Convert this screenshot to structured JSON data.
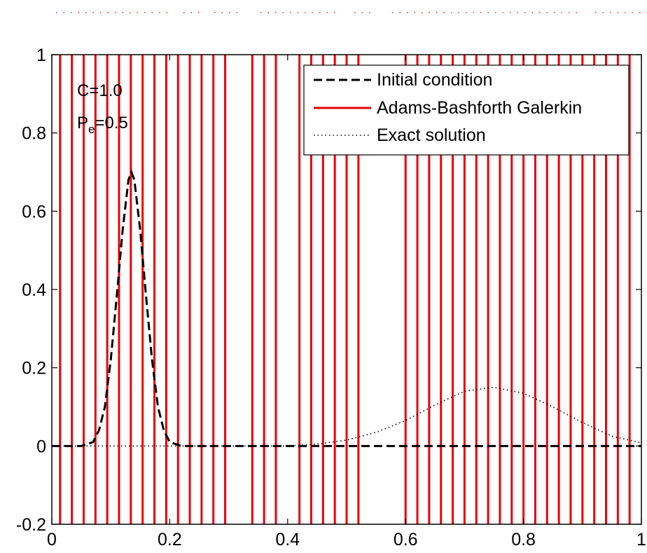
{
  "chart_data": {
    "type": "line",
    "title": "",
    "xlabel": "",
    "ylabel": "",
    "xlim": [
      0,
      1
    ],
    "ylim": [
      -0.2,
      1
    ],
    "x_ticks": [
      "0",
      "0.2",
      "0.4",
      "0.6",
      "0.8",
      "1"
    ],
    "y_ticks": [
      "-0.2",
      "0",
      "0.2",
      "0.4",
      "0.6",
      "0.8",
      "1"
    ],
    "grid": false,
    "legend_position": "top-right",
    "annotations": {
      "courant": "C=1.0",
      "peclet_main": "P",
      "peclet_sub": "e",
      "peclet_value": "=0.5"
    },
    "series": [
      {
        "name": "Initial condition",
        "style": "dashed",
        "color": "#000000",
        "x": [
          0,
          0.05,
          0.07,
          0.08,
          0.09,
          0.1,
          0.11,
          0.12,
          0.13,
          0.135,
          0.14,
          0.15,
          0.16,
          0.17,
          0.18,
          0.19,
          0.2,
          0.22,
          0.25,
          1.0
        ],
        "y": [
          0,
          0,
          0.01,
          0.04,
          0.1,
          0.22,
          0.38,
          0.55,
          0.68,
          0.7,
          0.68,
          0.55,
          0.38,
          0.22,
          0.1,
          0.04,
          0.01,
          0,
          0,
          0
        ]
      },
      {
        "name": "Adams-Bashforth Galerkin",
        "style": "solid",
        "color": "#e8000b",
        "render": "vertical-lines",
        "x": [
          0.014,
          0.034,
          0.054,
          0.074,
          0.094,
          0.114,
          0.134,
          0.154,
          0.174,
          0.194,
          0.214,
          0.234,
          0.254,
          0.274,
          0.294,
          0.34,
          0.36,
          0.38,
          0.42,
          0.44,
          0.46,
          0.48,
          0.5,
          0.52,
          0.6,
          0.62,
          0.64,
          0.66,
          0.68,
          0.7,
          0.72,
          0.74,
          0.76,
          0.78,
          0.8,
          0.82,
          0.84,
          0.86,
          0.88,
          0.9,
          0.92,
          0.94,
          0.96,
          0.98
        ]
      },
      {
        "name": "Exact solution",
        "style": "dotted",
        "color": "#000000",
        "x": [
          0,
          0.4,
          0.45,
          0.5,
          0.55,
          0.6,
          0.65,
          0.7,
          0.75,
          0.8,
          0.85,
          0.9,
          0.95,
          1.0
        ],
        "y": [
          0,
          0,
          0.005,
          0.015,
          0.035,
          0.065,
          0.105,
          0.14,
          0.15,
          0.135,
          0.1,
          0.06,
          0.025,
          0.008
        ]
      }
    ]
  }
}
